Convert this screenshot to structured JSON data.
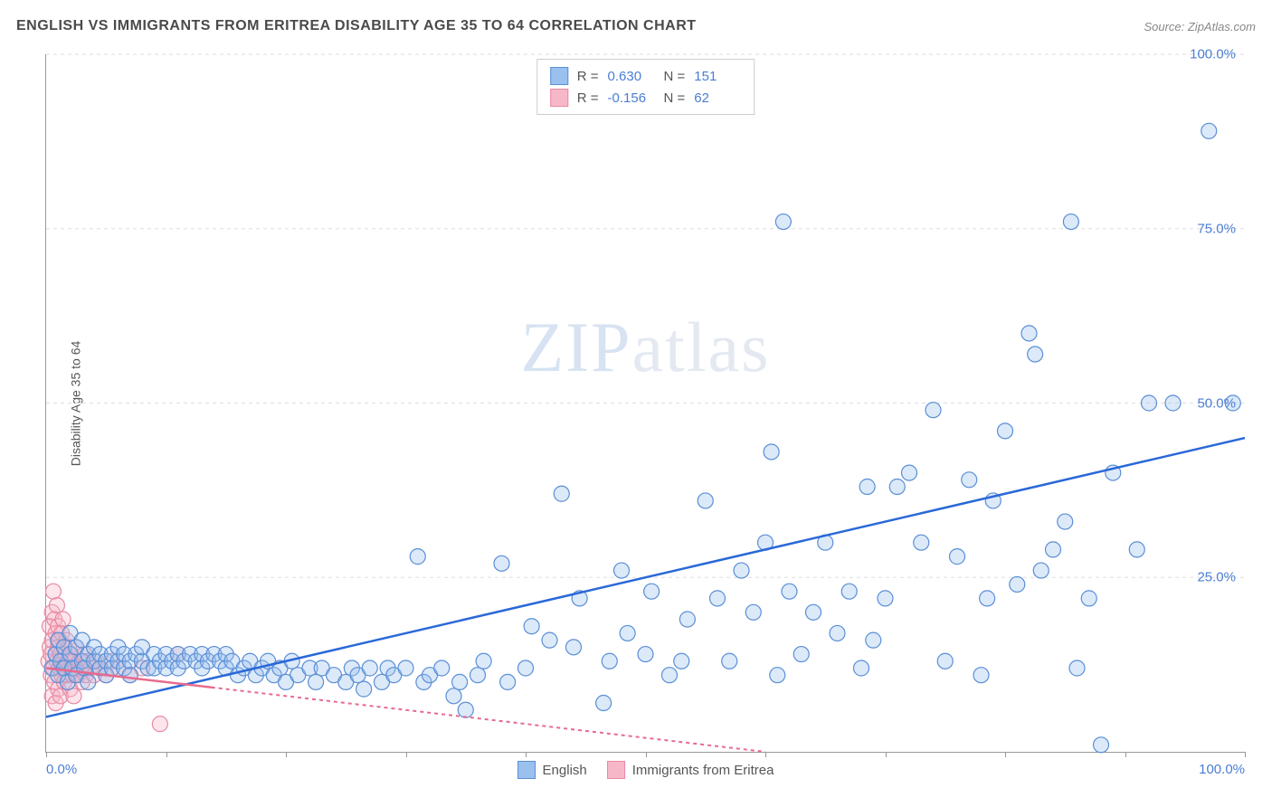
{
  "title": "ENGLISH VS IMMIGRANTS FROM ERITREA DISABILITY AGE 35 TO 64 CORRELATION CHART",
  "source": "Source: ZipAtlas.com",
  "y_axis_label": "Disability Age 35 to 64",
  "watermark_bold": "ZIP",
  "watermark_thin": "atlas",
  "chart": {
    "type": "scatter",
    "xlim": [
      0,
      100
    ],
    "ylim": [
      0,
      100
    ],
    "x_tick_positions": [
      0,
      10,
      20,
      30,
      40,
      50,
      60,
      70,
      80,
      90,
      100
    ],
    "y_gridlines": [
      25,
      50,
      75,
      100
    ],
    "y_tick_labels": [
      "25.0%",
      "50.0%",
      "75.0%",
      "100.0%"
    ],
    "x_label_min": "0.0%",
    "x_label_max": "100.0%",
    "background_color": "#ffffff",
    "grid_color": "#dddddd",
    "axis_color": "#999999",
    "marker_radius": 8.5,
    "marker_opacity": 0.35,
    "series": [
      {
        "name": "English",
        "fill_color": "#9ac0ee",
        "stroke_color": "#5a8fd6",
        "line_color": "#2a68d8",
        "line_width": 2.5,
        "line_dash": "none",
        "R": "0.630",
        "N": "151",
        "trend": {
          "x1": 0,
          "y1": 5,
          "x2": 100,
          "y2": 45
        },
        "points": [
          [
            0.5,
            12
          ],
          [
            0.8,
            14
          ],
          [
            1,
            11
          ],
          [
            1,
            16
          ],
          [
            1.2,
            13
          ],
          [
            1.5,
            15
          ],
          [
            1.5,
            12
          ],
          [
            1.8,
            10
          ],
          [
            2,
            14
          ],
          [
            2,
            17
          ],
          [
            2.2,
            12
          ],
          [
            2.5,
            15
          ],
          [
            2.5,
            11
          ],
          [
            3,
            13
          ],
          [
            3,
            16
          ],
          [
            3.2,
            12
          ],
          [
            3.5,
            14
          ],
          [
            3.5,
            10
          ],
          [
            4,
            13
          ],
          [
            4,
            15
          ],
          [
            4.5,
            12
          ],
          [
            4.5,
            14
          ],
          [
            5,
            13
          ],
          [
            5,
            11
          ],
          [
            5.5,
            14
          ],
          [
            5.5,
            12
          ],
          [
            6,
            13
          ],
          [
            6,
            15
          ],
          [
            6.5,
            12
          ],
          [
            6.5,
            14
          ],
          [
            7,
            13
          ],
          [
            7,
            11
          ],
          [
            7.5,
            14
          ],
          [
            8,
            13
          ],
          [
            8,
            15
          ],
          [
            8.5,
            12
          ],
          [
            9,
            14
          ],
          [
            9,
            12
          ],
          [
            9.5,
            13
          ],
          [
            10,
            14
          ],
          [
            10,
            12
          ],
          [
            10.5,
            13
          ],
          [
            11,
            14
          ],
          [
            11,
            12
          ],
          [
            11.5,
            13
          ],
          [
            12,
            14
          ],
          [
            12.5,
            13
          ],
          [
            13,
            14
          ],
          [
            13,
            12
          ],
          [
            13.5,
            13
          ],
          [
            14,
            14
          ],
          [
            14.5,
            13
          ],
          [
            15,
            14
          ],
          [
            15,
            12
          ],
          [
            15.5,
            13
          ],
          [
            16,
            11
          ],
          [
            16.5,
            12
          ],
          [
            17,
            13
          ],
          [
            17.5,
            11
          ],
          [
            18,
            12
          ],
          [
            18.5,
            13
          ],
          [
            19,
            11
          ],
          [
            19.5,
            12
          ],
          [
            20,
            10
          ],
          [
            20.5,
            13
          ],
          [
            21,
            11
          ],
          [
            22,
            12
          ],
          [
            22.5,
            10
          ],
          [
            23,
            12
          ],
          [
            24,
            11
          ],
          [
            25,
            10
          ],
          [
            25.5,
            12
          ],
          [
            26,
            11
          ],
          [
            26.5,
            9
          ],
          [
            27,
            12
          ],
          [
            28,
            10
          ],
          [
            28.5,
            12
          ],
          [
            29,
            11
          ],
          [
            30,
            12
          ],
          [
            31,
            28
          ],
          [
            31.5,
            10
          ],
          [
            32,
            11
          ],
          [
            33,
            12
          ],
          [
            34,
            8
          ],
          [
            34.5,
            10
          ],
          [
            35,
            6
          ],
          [
            36,
            11
          ],
          [
            36.5,
            13
          ],
          [
            38,
            27
          ],
          [
            38.5,
            10
          ],
          [
            40,
            12
          ],
          [
            40.5,
            18
          ],
          [
            42,
            16
          ],
          [
            43,
            37
          ],
          [
            44,
            15
          ],
          [
            44.5,
            22
          ],
          [
            46.5,
            7
          ],
          [
            47,
            13
          ],
          [
            48,
            26
          ],
          [
            48.5,
            17
          ],
          [
            50,
            14
          ],
          [
            50.5,
            23
          ],
          [
            52,
            11
          ],
          [
            53,
            13
          ],
          [
            53.5,
            19
          ],
          [
            55,
            36
          ],
          [
            56,
            22
          ],
          [
            57,
            13
          ],
          [
            58,
            26
          ],
          [
            59,
            20
          ],
          [
            60,
            30
          ],
          [
            60.5,
            43
          ],
          [
            61,
            11
          ],
          [
            61.5,
            76
          ],
          [
            62,
            23
          ],
          [
            63,
            14
          ],
          [
            64,
            20
          ],
          [
            65,
            30
          ],
          [
            66,
            17
          ],
          [
            67,
            23
          ],
          [
            68,
            12
          ],
          [
            68.5,
            38
          ],
          [
            69,
            16
          ],
          [
            70,
            22
          ],
          [
            71,
            38
          ],
          [
            72,
            40
          ],
          [
            73,
            30
          ],
          [
            74,
            49
          ],
          [
            75,
            13
          ],
          [
            76,
            28
          ],
          [
            77,
            39
          ],
          [
            78,
            11
          ],
          [
            78.5,
            22
          ],
          [
            79,
            36
          ],
          [
            80,
            46
          ],
          [
            81,
            24
          ],
          [
            82,
            60
          ],
          [
            82.5,
            57
          ],
          [
            83,
            26
          ],
          [
            84,
            29
          ],
          [
            85,
            33
          ],
          [
            85.5,
            76
          ],
          [
            86,
            12
          ],
          [
            87,
            22
          ],
          [
            88,
            1
          ],
          [
            89,
            40
          ],
          [
            91,
            29
          ],
          [
            92,
            50
          ],
          [
            94,
            50
          ],
          [
            97,
            89
          ],
          [
            99,
            50
          ]
        ]
      },
      {
        "name": "Immigrants from Eritrea",
        "fill_color": "#f6b8c8",
        "stroke_color": "#e88aa5",
        "line_color": "#e86a8e",
        "line_width": 2,
        "line_dash": "4,4",
        "R": "-0.156",
        "N": "62",
        "trend": {
          "x1": 0,
          "y1": 12,
          "x2": 60,
          "y2": 0
        },
        "points": [
          [
            0.2,
            13
          ],
          [
            0.3,
            15
          ],
          [
            0.3,
            18
          ],
          [
            0.4,
            11
          ],
          [
            0.4,
            14
          ],
          [
            0.5,
            20
          ],
          [
            0.5,
            8
          ],
          [
            0.5,
            16
          ],
          [
            0.6,
            23
          ],
          [
            0.6,
            12
          ],
          [
            0.7,
            19
          ],
          [
            0.7,
            10
          ],
          [
            0.8,
            14
          ],
          [
            0.8,
            17
          ],
          [
            0.8,
            7
          ],
          [
            0.9,
            21
          ],
          [
            0.9,
            13
          ],
          [
            1,
            15
          ],
          [
            1,
            9
          ],
          [
            1,
            18
          ],
          [
            1.1,
            12
          ],
          [
            1.1,
            16
          ],
          [
            1.2,
            14
          ],
          [
            1.2,
            8
          ],
          [
            1.3,
            17
          ],
          [
            1.3,
            11
          ],
          [
            1.4,
            13
          ],
          [
            1.4,
            19
          ],
          [
            1.5,
            10
          ],
          [
            1.5,
            15
          ],
          [
            1.6,
            12
          ],
          [
            1.6,
            14
          ],
          [
            1.7,
            16
          ],
          [
            1.8,
            11
          ],
          [
            1.8,
            13
          ],
          [
            1.9,
            15
          ],
          [
            2,
            12
          ],
          [
            2,
            9
          ],
          [
            2.1,
            14
          ],
          [
            2.2,
            11
          ],
          [
            2.3,
            13
          ],
          [
            2.3,
            8
          ],
          [
            2.5,
            12
          ],
          [
            2.5,
            15
          ],
          [
            2.7,
            11
          ],
          [
            2.8,
            13
          ],
          [
            3,
            10
          ],
          [
            3,
            12
          ],
          [
            3.2,
            14
          ],
          [
            3.3,
            11
          ],
          [
            3.5,
            13
          ],
          [
            3.7,
            12
          ],
          [
            4,
            11
          ],
          [
            4.2,
            13
          ],
          [
            4.5,
            12
          ],
          [
            5,
            11
          ],
          [
            5.5,
            13
          ],
          [
            6,
            12
          ],
          [
            7,
            11
          ],
          [
            8,
            12
          ],
          [
            9.5,
            4
          ],
          [
            11,
            14
          ]
        ]
      }
    ]
  },
  "stats_legend": {
    "r_label": "R =",
    "n_label": "N ="
  },
  "series_legend": {
    "english": "English",
    "eritrea": "Immigrants from Eritrea"
  }
}
